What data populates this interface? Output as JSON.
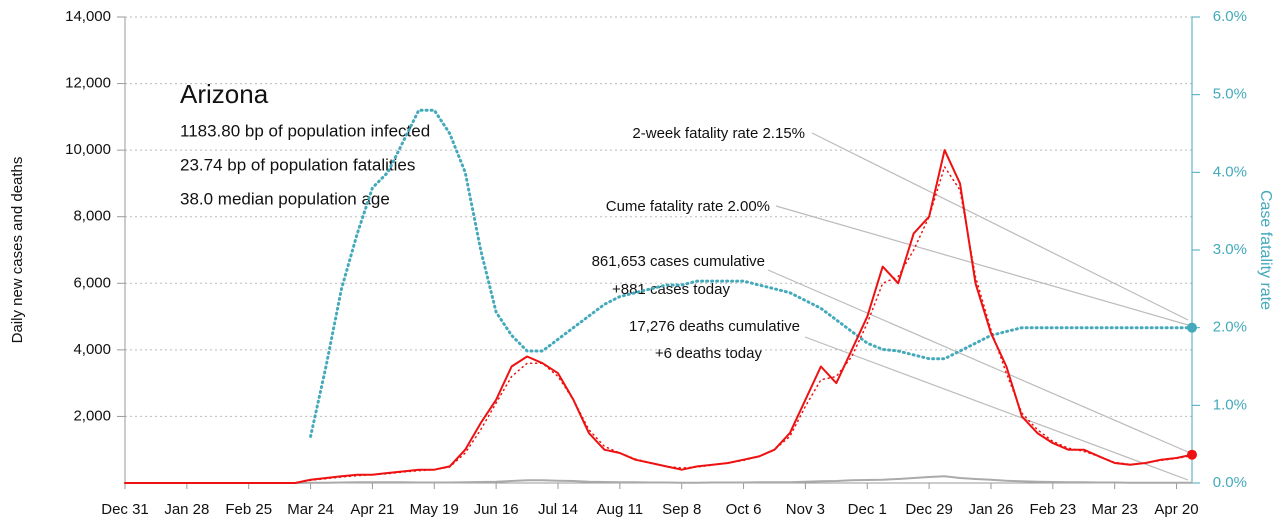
{
  "chart_data": {
    "type": "line",
    "title": "Arizona",
    "subtitle_lines": [
      "1183.80 bp of population infected",
      "23.74 bp of population fatalities",
      "38.0 median population age"
    ],
    "y_label": "Daily new cases and deaths",
    "y2_label": "Case fatality rate",
    "annotations": [
      "2-week fatality rate 2.15%",
      "Cume fatality rate 2.00%",
      "861,653 cases cumulative",
      "+881 cases today",
      "17,276 deaths cumulative",
      "+6 deaths today"
    ],
    "categories": [
      "Dec 31",
      null,
      null,
      null,
      "Jan 28",
      null,
      null,
      null,
      "Feb 25",
      null,
      null,
      null,
      "Mar 24",
      null,
      null,
      null,
      "Apr 21",
      null,
      null,
      null,
      "May 19",
      null,
      null,
      null,
      "Jun 16",
      null,
      null,
      null,
      "Jul 14",
      null,
      null,
      null,
      "Aug 11",
      null,
      null,
      null,
      "Sep 8",
      null,
      null,
      null,
      "Oct 6",
      null,
      null,
      null,
      "Nov 3",
      null,
      null,
      null,
      "Dec 1",
      null,
      null,
      null,
      "Dec 29",
      null,
      null,
      null,
      "Jan 26",
      null,
      null,
      null,
      "Feb 23",
      null,
      null,
      null,
      "Mar 23",
      null,
      null,
      null,
      "Apr 20",
      null
    ],
    "ylim": [
      0,
      14000
    ],
    "yticks": [
      {
        "value": 2000,
        "label": "2,000"
      },
      {
        "value": 4000,
        "label": "4,000"
      },
      {
        "value": 6000,
        "label": "6,000"
      },
      {
        "value": 8000,
        "label": "8,000"
      },
      {
        "value": 10000,
        "label": "10,000"
      },
      {
        "value": 12000,
        "label": "12,000"
      },
      {
        "value": 14000,
        "label": "14,000"
      }
    ],
    "y2lim": [
      0,
      6
    ],
    "y2ticks": [
      {
        "value": 0,
        "label": "0.0%"
      },
      {
        "value": 1,
        "label": "1.0%"
      },
      {
        "value": 2,
        "label": "2.0%"
      },
      {
        "value": 3,
        "label": "3.0%"
      },
      {
        "value": 4,
        "label": "4.0%"
      },
      {
        "value": 5,
        "label": "5.0%"
      },
      {
        "value": 6,
        "label": "6.0%"
      }
    ],
    "grid": true,
    "series": [
      {
        "name": "Daily new cases",
        "color": "#ee1111",
        "dash": false,
        "width": 2,
        "values": [
          0,
          0,
          0,
          0,
          0,
          0,
          0,
          0,
          0,
          0,
          0,
          0,
          100,
          150,
          200,
          250,
          250,
          300,
          350,
          400,
          400,
          500,
          1000,
          1800,
          2500,
          3500,
          3800,
          3600,
          3300,
          2500,
          1500,
          1000,
          900,
          700,
          600,
          500,
          400,
          500,
          550,
          600,
          700,
          800,
          1000,
          1500,
          2500,
          3500,
          3000,
          4000,
          5000,
          6500,
          6000,
          7500,
          8000,
          10000,
          9000,
          6000,
          4500,
          3500,
          2000,
          1500,
          1200,
          1000,
          1000,
          800,
          600,
          550,
          600,
          700,
          750,
          850
        ]
      },
      {
        "name": "Cases moving average",
        "color": "#ee1111",
        "dash": true,
        "width": 1.5,
        "values": [
          0,
          0,
          0,
          0,
          0,
          0,
          0,
          0,
          0,
          0,
          0,
          0,
          80,
          130,
          180,
          220,
          250,
          280,
          330,
          370,
          400,
          480,
          900,
          1600,
          2400,
          3200,
          3600,
          3600,
          3200,
          2500,
          1600,
          1100,
          900,
          720,
          600,
          500,
          450,
          480,
          540,
          600,
          680,
          800,
          1000,
          1400,
          2300,
          3100,
          3200,
          3800,
          4800,
          6000,
          6200,
          7000,
          8000,
          9500,
          8800,
          6200,
          4600,
          3300,
          2100,
          1600,
          1250,
          1050,
          950,
          800,
          620,
          560,
          600,
          680,
          740,
          820
        ]
      },
      {
        "name": "Daily deaths",
        "color": "#aaaaaa",
        "dash": false,
        "width": 2,
        "values": [
          0,
          0,
          0,
          0,
          0,
          0,
          0,
          0,
          0,
          0,
          0,
          0,
          5,
          10,
          15,
          20,
          20,
          20,
          20,
          15,
          15,
          15,
          20,
          30,
          40,
          60,
          80,
          80,
          70,
          60,
          40,
          30,
          25,
          20,
          15,
          15,
          10,
          10,
          15,
          15,
          15,
          20,
          20,
          25,
          40,
          50,
          60,
          80,
          90,
          100,
          120,
          150,
          180,
          200,
          150,
          120,
          100,
          70,
          50,
          40,
          30,
          25,
          20,
          15,
          15,
          10,
          10,
          10,
          10,
          10
        ]
      },
      {
        "name": "Case fatality rate",
        "color": "#44aabb",
        "dash": true,
        "width": 3,
        "axis": "y2",
        "values": [
          null,
          null,
          null,
          null,
          null,
          null,
          null,
          null,
          null,
          null,
          null,
          null,
          0.6,
          1.5,
          2.5,
          3.2,
          3.8,
          4.0,
          4.4,
          4.8,
          4.8,
          4.5,
          4.0,
          3.0,
          2.2,
          1.9,
          1.7,
          1.7,
          1.85,
          2.0,
          2.15,
          2.3,
          2.4,
          2.45,
          2.5,
          2.55,
          2.55,
          2.6,
          2.6,
          2.6,
          2.6,
          2.55,
          2.5,
          2.45,
          2.35,
          2.25,
          2.1,
          1.95,
          1.8,
          1.72,
          1.7,
          1.65,
          1.6,
          1.6,
          1.7,
          1.8,
          1.9,
          1.95,
          2.0,
          2.0,
          2.0,
          2.0,
          2.0,
          2.0,
          2.0,
          2.0,
          2.0,
          2.0,
          2.0,
          2.0
        ]
      }
    ]
  }
}
